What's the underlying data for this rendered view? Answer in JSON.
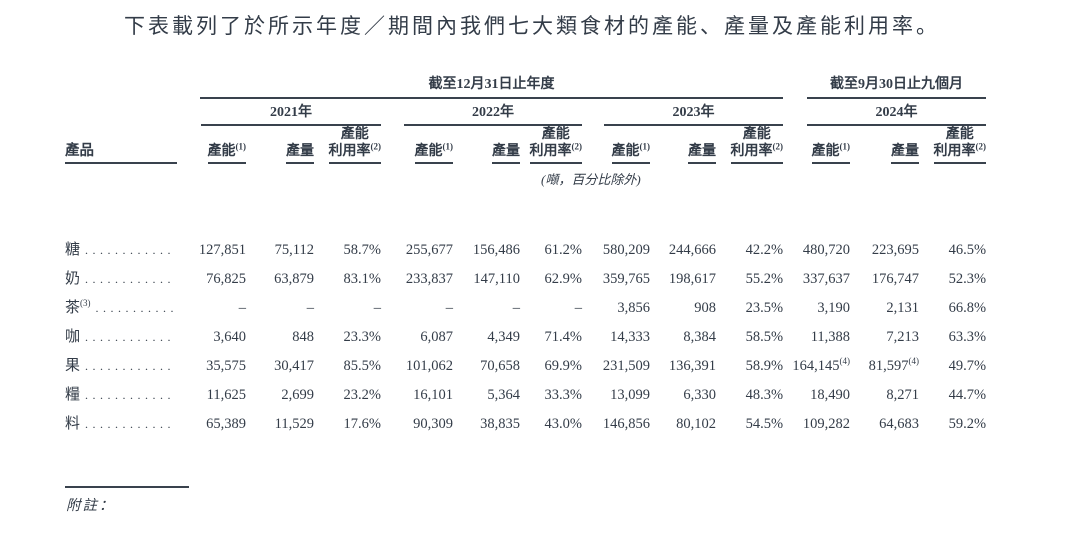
{
  "title": "下表載列了於所示年度／期間內我們七大類食材的產能、產量及產能利用率。",
  "table": {
    "product_header": "產品",
    "unit_note": "(噸，百分比除外)",
    "groups": [
      {
        "period": "截至12月31日止年度",
        "years": [
          "2021年",
          "2022年",
          "2023年"
        ]
      },
      {
        "period": "截至9月30日止九個月",
        "years": [
          "2024年"
        ]
      }
    ],
    "col_headers": {
      "capacity": "產能",
      "capacity_sup": "(1)",
      "output": "產量",
      "utilization_line1": "產能",
      "utilization_line2": "利用率",
      "utilization_sup": "(2)"
    },
    "rows": [
      {
        "label": "糖",
        "sup": "",
        "leader": "............",
        "values": [
          "127,851",
          "75,112",
          "58.7%",
          "255,677",
          "156,486",
          "61.2%",
          "580,209",
          "244,666",
          "42.2%",
          "480,720",
          "223,695",
          "46.5%"
        ]
      },
      {
        "label": "奶",
        "sup": "",
        "leader": "............",
        "values": [
          "76,825",
          "63,879",
          "83.1%",
          "233,837",
          "147,110",
          "62.9%",
          "359,765",
          "198,617",
          "55.2%",
          "337,637",
          "176,747",
          "52.3%"
        ]
      },
      {
        "label": "茶",
        "sup": "(3)",
        "leader": "...........",
        "values": [
          "–",
          "–",
          "–",
          "–",
          "–",
          "–",
          "3,856",
          "908",
          "23.5%",
          "3,190",
          "2,131",
          "66.8%"
        ]
      },
      {
        "label": "咖",
        "sup": "",
        "leader": "............",
        "values": [
          "3,640",
          "848",
          "23.3%",
          "6,087",
          "4,349",
          "71.4%",
          "14,333",
          "8,384",
          "58.5%",
          "11,388",
          "7,213",
          "63.3%"
        ]
      },
      {
        "label": "果",
        "sup": "",
        "leader": "............",
        "values": [
          "35,575",
          "30,417",
          "85.5%",
          "101,062",
          "70,658",
          "69.9%",
          "231,509",
          "136,391",
          "58.9%",
          "164,145",
          "81,597",
          "49.7%"
        ],
        "sups": {
          "9": "(4)",
          "10": "(4)"
        }
      },
      {
        "label": "糧",
        "sup": "",
        "leader": "............",
        "values": [
          "11,625",
          "2,699",
          "23.2%",
          "16,101",
          "5,364",
          "33.3%",
          "13,099",
          "6,330",
          "48.3%",
          "18,490",
          "8,271",
          "44.7%"
        ]
      },
      {
        "label": "料",
        "sup": "",
        "leader": "............",
        "values": [
          "65,389",
          "11,529",
          "17.6%",
          "90,309",
          "38,835",
          "43.0%",
          "146,856",
          "80,102",
          "54.5%",
          "109,282",
          "64,683",
          "59.2%"
        ]
      }
    ],
    "footnote_label": "附註："
  },
  "colors": {
    "text": "#333c48",
    "rule": "#39424d",
    "background": "#ffffff"
  }
}
